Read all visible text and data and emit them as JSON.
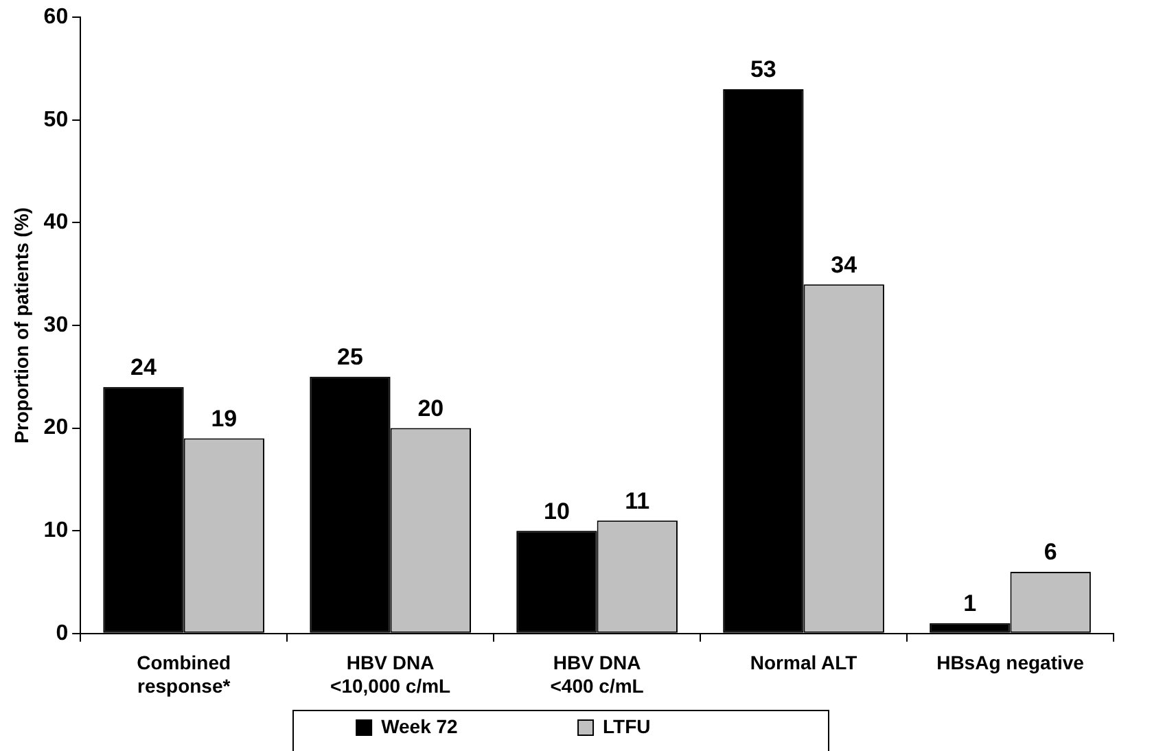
{
  "chart_data": {
    "type": "bar",
    "ylabel": "Proportion of patients (%)",
    "categories": [
      "Combined response*",
      "HBV DNA <10,000 c/mL",
      "HBV DNA <400 c/mL",
      "Normal ALT",
      "HBsAg negative"
    ],
    "series": [
      {
        "name": "Week 72",
        "color": "#000000",
        "values": [
          24,
          25,
          10,
          53,
          1
        ]
      },
      {
        "name": "LTFU",
        "color": "#c0c0c0",
        "values": [
          19,
          20,
          11,
          34,
          6
        ]
      }
    ],
    "ylim": [
      0,
      60
    ],
    "yticks": [
      0,
      10,
      20,
      30,
      40,
      50,
      60
    ],
    "grid": false,
    "legend": "bottom",
    "data_labels": true
  }
}
